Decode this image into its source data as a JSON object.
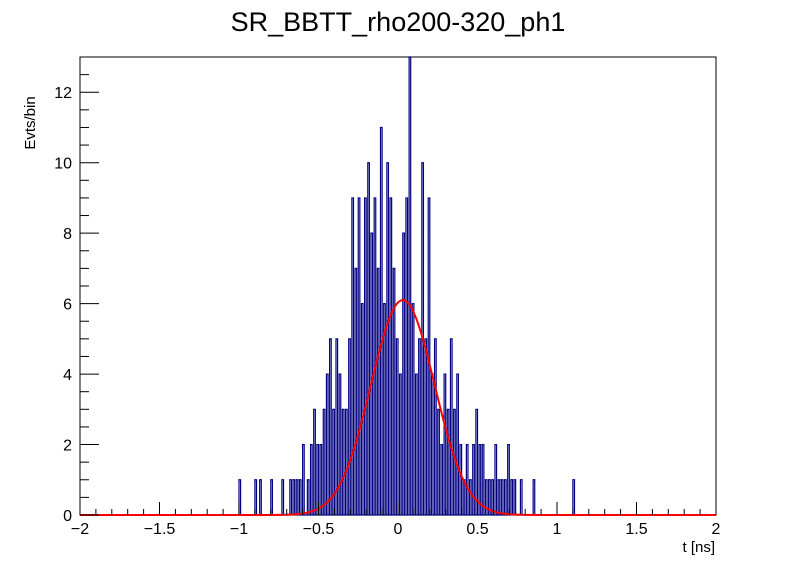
{
  "chart_data": {
    "type": "histogram",
    "title": "SR_BBTT_rho200-320_ph1",
    "xlabel": "t [ns]",
    "ylabel": "Evts/bin",
    "xlim": [
      -2,
      2
    ],
    "ylim": [
      0,
      13
    ],
    "bin_width": 0.01,
    "x_ticks": [
      -2,
      -1.5,
      -1,
      -0.5,
      0,
      0.5,
      1,
      1.5,
      2
    ],
    "x_tick_labels": [
      "−2",
      "−1.5",
      "−1",
      "−0.5",
      "0",
      "0.5",
      "1",
      "1.5",
      "2"
    ],
    "y_ticks": [
      0,
      2,
      4,
      6,
      8,
      10,
      12
    ],
    "y_tick_labels": [
      "0",
      "2",
      "4",
      "6",
      "8",
      "10",
      "12"
    ],
    "series": [
      {
        "kind": "histogram",
        "color": "#000080",
        "bins_x_start": [
          -1.0,
          -0.9,
          -0.87,
          -0.8,
          -0.73,
          -0.68,
          -0.66,
          -0.64,
          -0.62,
          -0.6,
          -0.57,
          -0.55,
          -0.53,
          -0.51,
          -0.49,
          -0.47,
          -0.45,
          -0.43,
          -0.41,
          -0.39,
          -0.37,
          -0.35,
          -0.33,
          -0.31,
          -0.29,
          -0.27,
          -0.25,
          -0.23,
          -0.21,
          -0.19,
          -0.17,
          -0.15,
          -0.13,
          -0.11,
          -0.09,
          -0.07,
          -0.05,
          -0.03,
          -0.01,
          0.01,
          0.03,
          0.05,
          0.07,
          0.09,
          0.11,
          0.13,
          0.15,
          0.17,
          0.19,
          0.21,
          0.23,
          0.25,
          0.27,
          0.29,
          0.31,
          0.33,
          0.35,
          0.37,
          0.39,
          0.41,
          0.43,
          0.45,
          0.47,
          0.49,
          0.51,
          0.53,
          0.55,
          0.57,
          0.59,
          0.61,
          0.63,
          0.65,
          0.67,
          0.69,
          0.71,
          0.73,
          0.77,
          0.85,
          1.1
        ],
        "bins_x_end": [
          -0.99,
          -0.89,
          -0.86,
          -0.79,
          -0.72,
          -0.67,
          -0.65,
          -0.63,
          -0.61,
          -0.59,
          -0.56,
          -0.54,
          -0.52,
          -0.5,
          -0.48,
          -0.46,
          -0.44,
          -0.42,
          -0.4,
          -0.38,
          -0.36,
          -0.34,
          -0.32,
          -0.3,
          -0.28,
          -0.26,
          -0.24,
          -0.22,
          -0.2,
          -0.18,
          -0.16,
          -0.14,
          -0.12,
          -0.1,
          -0.08,
          -0.06,
          -0.04,
          -0.02,
          0.0,
          0.02,
          0.04,
          0.06,
          0.08,
          0.1,
          0.12,
          0.14,
          0.16,
          0.18,
          0.2,
          0.22,
          0.24,
          0.26,
          0.28,
          0.3,
          0.32,
          0.34,
          0.36,
          0.38,
          0.4,
          0.42,
          0.44,
          0.46,
          0.48,
          0.5,
          0.52,
          0.54,
          0.56,
          0.58,
          0.6,
          0.62,
          0.64,
          0.66,
          0.68,
          0.7,
          0.72,
          0.74,
          0.78,
          0.86,
          1.11
        ],
        "values": [
          1,
          1,
          1,
          1,
          1,
          1,
          1,
          1,
          1,
          2,
          1,
          2,
          3,
          2,
          2,
          3,
          4,
          5,
          3,
          5,
          4,
          3,
          3,
          5,
          9,
          7,
          9,
          6,
          9,
          10,
          8,
          9,
          7,
          11,
          6,
          10,
          9,
          7,
          5,
          4,
          8,
          9,
          13,
          6,
          4,
          5,
          10,
          5,
          9,
          4,
          5,
          3,
          2,
          4,
          3,
          5,
          3,
          4,
          2,
          1,
          2,
          1,
          2,
          3,
          2,
          2,
          1,
          1,
          1,
          2,
          1,
          1,
          1,
          2,
          1,
          1,
          1,
          1,
          1
        ]
      },
      {
        "kind": "gaussian-fit",
        "color": "#ff0000",
        "amplitude": 6.1,
        "mean": 0.03,
        "sigma": 0.2
      }
    ]
  }
}
